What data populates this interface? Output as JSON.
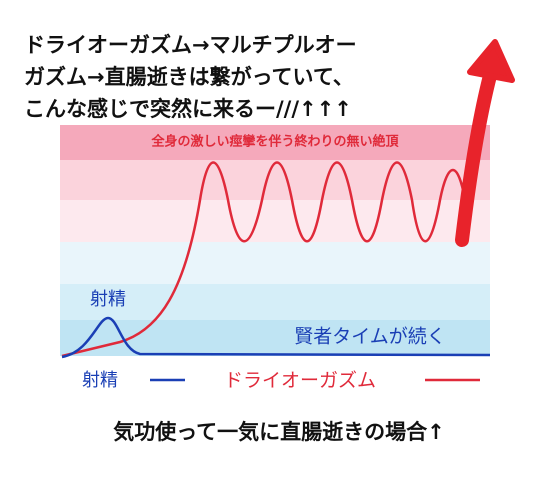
{
  "header": {
    "lines": [
      "ドライオーガズム→マルチプルオー",
      "ガズム→直腸逝きは繋がっていて、",
      "こんな感じで突然に来るー///↑↑↑"
    ]
  },
  "graph": {
    "top_band_label": "全身の激しい痙攣を伴う終わりの無い絶頂",
    "peak_label": "射精",
    "plateau_label": "賢者タイムが続く",
    "legend": [
      "射精",
      "ドライオーガズム"
    ]
  },
  "footer": {
    "caption": "気功使って一気に直腸逝きの場合↑"
  }
}
